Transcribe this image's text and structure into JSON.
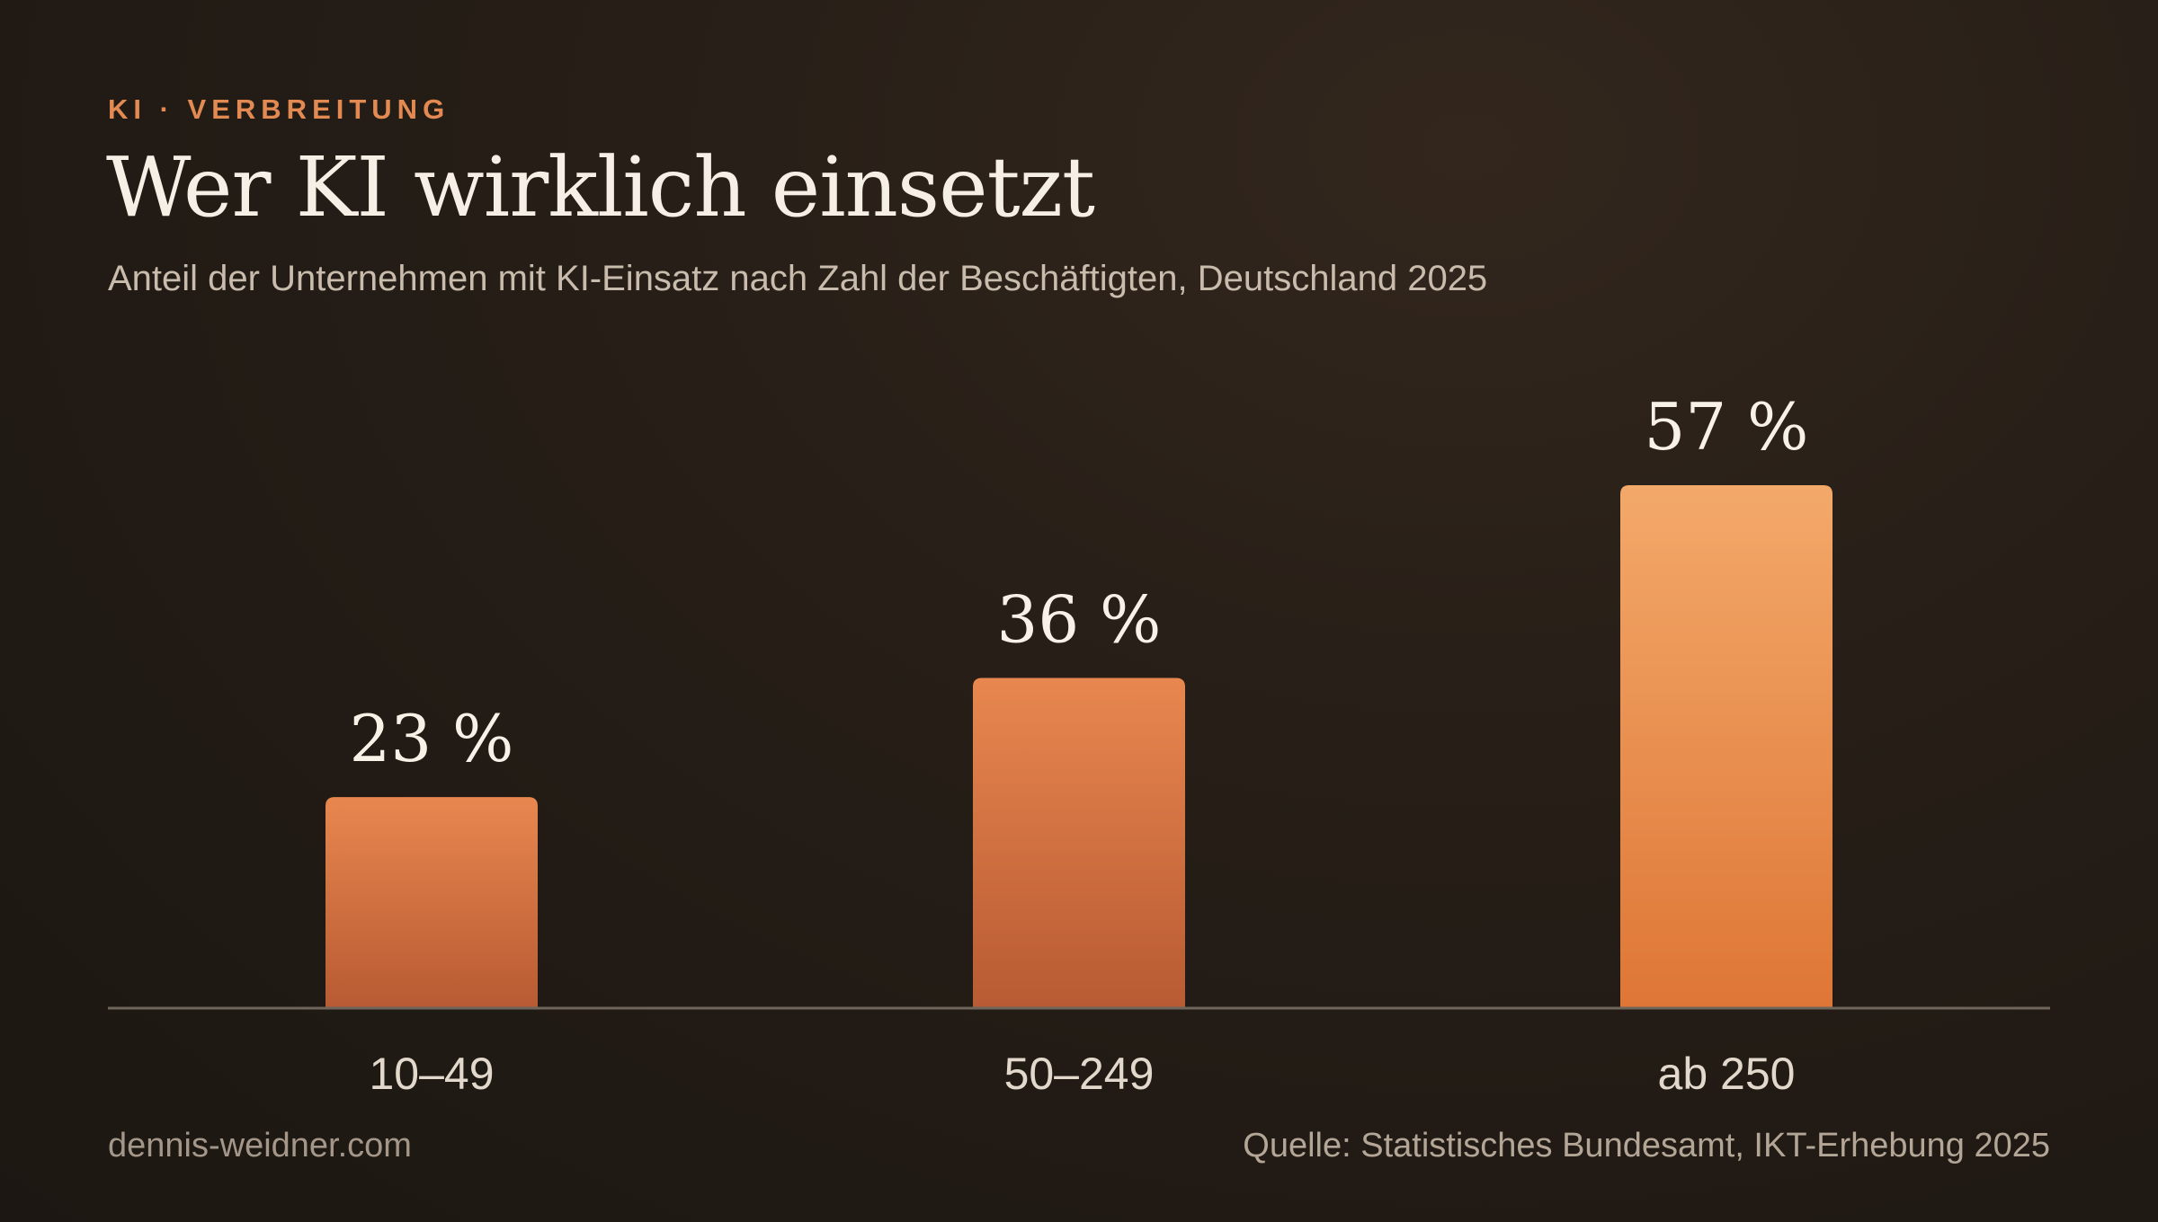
{
  "header": {
    "kicker": "KI · VERBREITUNG",
    "title": "Wer KI wirklich einsetzt",
    "subtitle": "Anteil der Unternehmen mit KI-Einsatz nach Zahl der Beschäftigten, Deutschland 2025"
  },
  "footer": {
    "site": "dennis-weidner.com",
    "source": "Quelle: Statistisches Bundesamt, IKT-Erhebung 2025"
  },
  "colors": {
    "accent": "#e28a52",
    "bar_top": "#e8874f",
    "bar_bottom": "#b85a33",
    "bar_highlight_top": "#f3a96a",
    "bar_highlight_bottom": "#de7636",
    "baseline": "#6e655b"
  },
  "chart_data": {
    "type": "bar",
    "title": "Wer KI wirklich einsetzt",
    "subtitle": "Anteil der Unternehmen mit KI-Einsatz nach Zahl der Beschäftigten, Deutschland 2025",
    "categories": [
      "10–49",
      "50–249",
      "ab 250"
    ],
    "values": [
      23,
      36,
      57
    ],
    "value_labels": [
      "23 %",
      "36 %",
      "57 %"
    ],
    "unit": "%",
    "ylim": [
      0,
      100
    ],
    "grid": false,
    "legend": "none",
    "highlighted_category": "ab 250"
  }
}
